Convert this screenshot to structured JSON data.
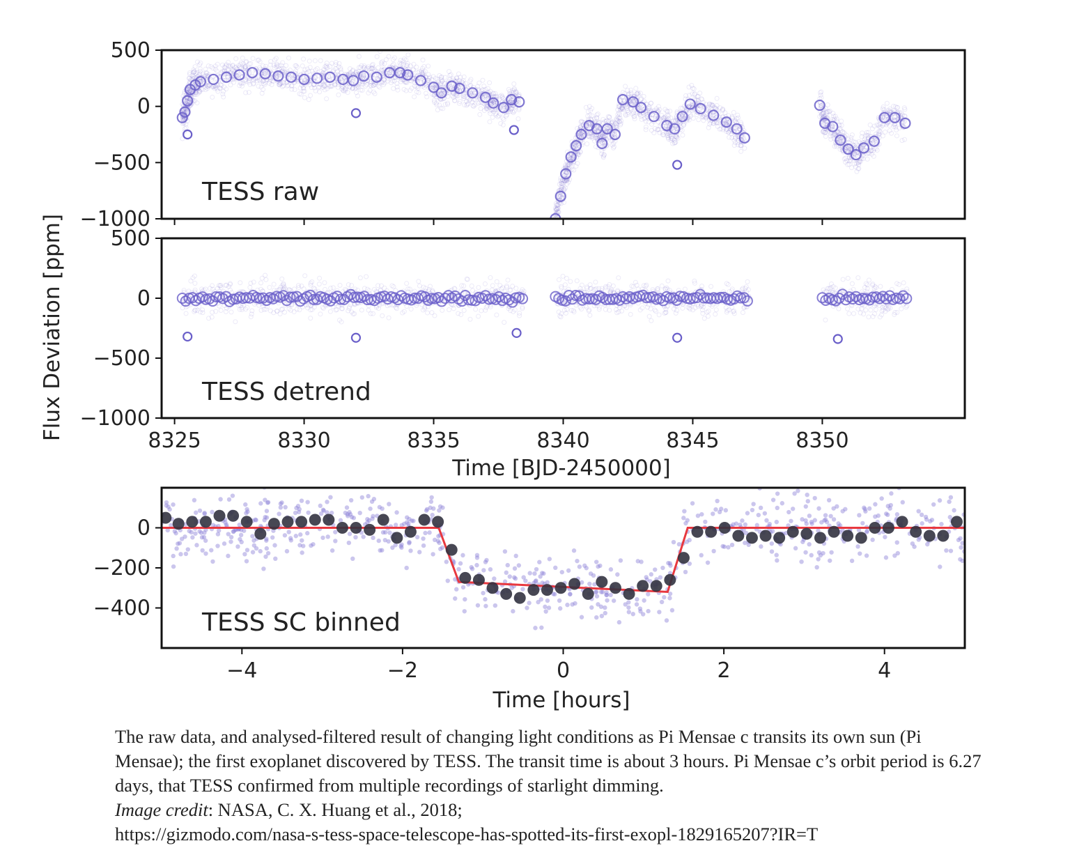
{
  "chart_data": [
    {
      "type": "scatter",
      "panel_label": "TESS raw",
      "ylabel": "Flux Deviation [ppm]",
      "xlabel": "",
      "xlim": [
        8324.5,
        8355.5
      ],
      "ylim": [
        -1000,
        500
      ],
      "yticks": [
        500,
        0,
        -500,
        -1000
      ],
      "color": "#6a5fc9",
      "series": [
        {
          "style": "hollow-circles",
          "x": [
            8325.3,
            8325.4,
            8325.5,
            8325.6,
            8325.8,
            8326.0,
            8326.5,
            8327.0,
            8327.5,
            8328.0,
            8328.5,
            8329.0,
            8329.5,
            8330.0,
            8330.5,
            8331.0,
            8331.5,
            8331.9,
            8332.3,
            8332.8,
            8333.3,
            8333.7,
            8334.0,
            8334.5,
            8335.0,
            8335.3,
            8335.7,
            8336.0,
            8336.5,
            8337.0,
            8337.3,
            8337.7,
            8338.0,
            8338.3,
            8339.7,
            8339.9,
            8340.1,
            8340.3,
            8340.5,
            8340.7,
            8341.0,
            8341.3,
            8341.5,
            8341.7,
            8342.0,
            8342.3,
            8342.7,
            8343.0,
            8343.5,
            8344.0,
            8344.3,
            8344.6,
            8344.9,
            8345.3,
            8345.8,
            8346.3,
            8346.7,
            8347.0,
            8349.9,
            8350.1,
            8350.4,
            8350.7,
            8351.0,
            8351.3,
            8351.6,
            8352.0,
            8352.4,
            8352.8,
            8353.2
          ],
          "y": [
            -100,
            -50,
            50,
            150,
            190,
            220,
            240,
            260,
            280,
            300,
            290,
            270,
            260,
            240,
            250,
            260,
            240,
            230,
            270,
            260,
            300,
            300,
            280,
            230,
            170,
            120,
            180,
            160,
            120,
            80,
            30,
            -10,
            60,
            40,
            -1000,
            -800,
            -600,
            -450,
            -350,
            -250,
            -170,
            -200,
            -330,
            -200,
            -250,
            60,
            40,
            -10,
            -90,
            -170,
            -200,
            -90,
            20,
            -20,
            -80,
            -140,
            -200,
            -280,
            10,
            -150,
            -180,
            -300,
            -380,
            -430,
            -370,
            -310,
            -100,
            -100,
            -150
          ]
        },
        {
          "style": "hollow-circles-transits",
          "x": [
            8325.5,
            8332.0,
            8338.1,
            8344.4
          ],
          "y": [
            -250,
            -60,
            -210,
            -520
          ]
        }
      ]
    },
    {
      "type": "scatter",
      "panel_label": "TESS detrend",
      "xlabel": "Time [BJD-2450000]",
      "xlim": [
        8324.5,
        8355.5
      ],
      "ylim": [
        -1000,
        500
      ],
      "xticks": [
        8325,
        8330,
        8335,
        8340,
        8345,
        8350
      ],
      "yticks": [
        500,
        0,
        -500,
        -1000
      ],
      "color": "#6a5fc9",
      "segments": [
        [
          8325.3,
          8338.5
        ],
        [
          8339.7,
          8347.2
        ],
        [
          8350.0,
          8353.3
        ]
      ],
      "transits": [
        {
          "x": 8325.5,
          "y": -320
        },
        {
          "x": 8332.0,
          "y": -330
        },
        {
          "x": 8338.2,
          "y": -290
        },
        {
          "x": 8344.4,
          "y": -330
        },
        {
          "x": 8350.6,
          "y": -340
        }
      ]
    },
    {
      "type": "scatter",
      "panel_label": "TESS SC binned",
      "xlabel": "Time [hours]",
      "xlim": [
        -5,
        5
      ],
      "ylim": [
        -600,
        200
      ],
      "xticks": [
        -4,
        -2,
        0,
        2,
        4
      ],
      "yticks": [
        0,
        -200,
        -400
      ],
      "colors": {
        "raw": "#8b80d8",
        "binned": "#333340",
        "model": "#e8383f"
      },
      "binned": {
        "x": [
          -4.95,
          -4.79,
          -4.62,
          -4.45,
          -4.28,
          -4.11,
          -3.94,
          -3.77,
          -3.6,
          -3.43,
          -3.26,
          -3.09,
          -2.92,
          -2.75,
          -2.58,
          -2.41,
          -2.24,
          -2.07,
          -1.9,
          -1.73,
          -1.56,
          -1.39,
          -1.22,
          -1.05,
          -0.88,
          -0.71,
          -0.54,
          -0.37,
          -0.2,
          -0.03,
          0.14,
          0.31,
          0.48,
          0.65,
          0.82,
          0.99,
          1.16,
          1.33,
          1.5,
          1.67,
          1.84,
          2.01,
          2.18,
          2.35,
          2.52,
          2.69,
          2.86,
          3.03,
          3.2,
          3.37,
          3.54,
          3.71,
          3.88,
          4.05,
          4.22,
          4.39,
          4.56,
          4.73,
          4.9
        ],
        "y": [
          50,
          20,
          30,
          30,
          60,
          60,
          30,
          -30,
          20,
          30,
          30,
          40,
          40,
          0,
          0,
          -10,
          40,
          -50,
          -20,
          40,
          30,
          -110,
          -250,
          -260,
          -300,
          -330,
          -350,
          -310,
          -310,
          -300,
          -280,
          -330,
          -270,
          -300,
          -330,
          -290,
          -290,
          -260,
          -150,
          -20,
          -20,
          0,
          -40,
          -50,
          -40,
          -50,
          -20,
          -30,
          -50,
          -20,
          -40,
          -50,
          0,
          0,
          30,
          -20,
          -40,
          -40,
          30
        ]
      },
      "model": {
        "x": [
          -5,
          -1.55,
          -1.3,
          1.3,
          1.55,
          5
        ],
        "y": [
          0,
          0,
          -270,
          -320,
          0,
          0
        ]
      }
    }
  ],
  "caption": {
    "text": "The raw data, and analysed-filtered result of changing light conditions as Pi Mensae c transits its own sun (Pi Mensae); the first exoplanet discovered by TESS. The  transit time is about 3 hours. Pi Mensae c’s orbit period is 6.27 days, that TESS confirmed from multiple recordings of starlight dimming.",
    "credit_label": "Image credit",
    "credit_text": ": NASA, C. X. Huang et al., 2018;",
    "url": "https://gizmodo.com/nasa-s-tess-space-telescope-has-spotted-its-first-exopl-1829165207?IR=T"
  }
}
